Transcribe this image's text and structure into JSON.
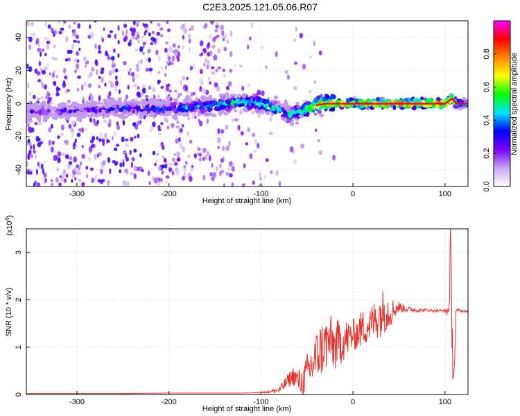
{
  "title": "C2E3.2025.121.05.06.R07",
  "chart_data": [
    {
      "type": "heatmap",
      "xlabel": "Height of straight line (km)",
      "ylabel": "Frequency (Hz)",
      "xlim": [
        -355,
        125
      ],
      "ylim": [
        -50,
        50
      ],
      "xticks": [
        -300,
        -200,
        -100,
        0,
        100
      ],
      "yticks": [
        -40,
        -20,
        0,
        20,
        40
      ],
      "grid": true,
      "colorbar": {
        "label": "Normalized spectral amplitude",
        "range": [
          0,
          1
        ],
        "ticks": [
          "0.0",
          "0.2",
          "0.4",
          "0.6",
          "0.8"
        ],
        "colors": [
          "#ffffff",
          "#c9a8ee",
          "#7a00ff",
          "#0000ff",
          "#00e5ff",
          "#00ff00",
          "#ffff00",
          "#ff8800",
          "#ff0000",
          "#ff00ff"
        ]
      },
      "ridge": {
        "x": [
          -355,
          -300,
          -250,
          -200,
          -150,
          -120,
          -100,
          -80,
          -70,
          -60,
          -50,
          -40,
          -30,
          -20,
          0,
          50,
          100,
          108,
          112,
          125
        ],
        "frequency": [
          -5,
          -4,
          -3,
          -3,
          -1,
          1,
          0,
          -4,
          -7,
          -5,
          -3,
          -1,
          0,
          0,
          0,
          0,
          0,
          3,
          0,
          0
        ],
        "peak_amplitude": [
          0.3,
          0.35,
          0.4,
          0.45,
          0.55,
          0.6,
          0.65,
          0.55,
          0.55,
          0.6,
          0.7,
          0.75,
          0.8,
          0.85,
          0.9,
          0.9,
          0.9,
          0.9,
          0.7,
          0.5
        ]
      }
    },
    {
      "type": "line",
      "xlabel": "Height of straight line (km)",
      "ylabel": "SNR (10 * v/v)",
      "ymultiplier": "(x10",
      "ymultiplier_exp": "4",
      "ymultiplier_close": ")",
      "xlim": [
        -355,
        125
      ],
      "ylim": [
        0,
        3.5
      ],
      "xticks": [
        -300,
        -200,
        -100,
        0,
        100
      ],
      "yticks": [
        0,
        1,
        2,
        3
      ],
      "grid": true,
      "series": [
        {
          "color": "#e8302a",
          "x": [
            -355,
            -300,
            -250,
            -200,
            -150,
            -120,
            -100,
            -90,
            -80,
            -75,
            -70,
            -65,
            -60,
            -55,
            -50,
            -45,
            -40,
            -35,
            -30,
            -25,
            -20,
            -15,
            -10,
            -5,
            0,
            5,
            10,
            15,
            20,
            25,
            30,
            35,
            40,
            45,
            50,
            60,
            70,
            80,
            90,
            100,
            104,
            106,
            108,
            110,
            112,
            115,
            120,
            125
          ],
          "y": [
            0.02,
            0.02,
            0.02,
            0.03,
            0.03,
            0.03,
            0.04,
            0.06,
            0.1,
            0.2,
            0.3,
            0.4,
            0.3,
            0.25,
            0.45,
            0.6,
            0.8,
            0.95,
            1.05,
            1.15,
            1.0,
            1.1,
            1.15,
            1.2,
            1.25,
            1.3,
            1.4,
            1.45,
            1.5,
            1.6,
            1.7,
            1.8,
            1.75,
            1.8,
            1.85,
            1.8,
            1.78,
            1.78,
            1.77,
            1.77,
            1.75,
            3.0,
            1.0,
            0.5,
            1.75,
            1.78,
            1.76,
            1.76
          ],
          "noise_envelope": [
            0.0,
            0.0,
            0.0,
            0.0,
            0.0,
            0.0,
            0.01,
            0.03,
            0.08,
            0.12,
            0.15,
            0.2,
            0.25,
            0.3,
            0.4,
            0.5,
            0.55,
            0.6,
            0.6,
            0.55,
            0.55,
            0.5,
            0.45,
            0.4,
            0.35,
            0.35,
            0.4,
            0.4,
            0.4,
            0.45,
            0.5,
            0.5,
            0.35,
            0.2,
            0.12,
            0.06,
            0.04,
            0.03,
            0.03,
            0.03,
            0.2,
            0.6,
            0.6,
            0.4,
            0.05,
            0.03,
            0.02,
            0.02
          ]
        }
      ]
    }
  ]
}
